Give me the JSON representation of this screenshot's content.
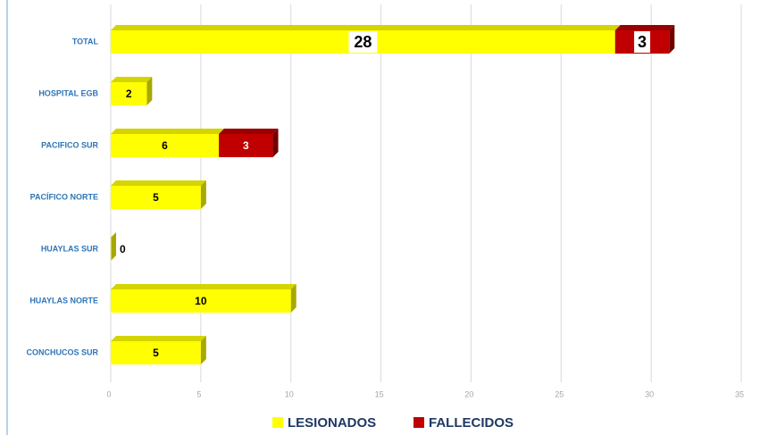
{
  "chart_data": {
    "type": "stacked-barh",
    "categories": [
      "TOTAL",
      "HOSPITAL EGB",
      "PACIFICO SUR",
      "PACÍFICO NORTE",
      "HUAYLAS SUR",
      "HUAYLAS NORTE",
      "CONCHUCOS SUR"
    ],
    "series": [
      {
        "name": "LESIONADOS",
        "color": "#ffff00",
        "values": [
          28,
          2,
          6,
          5,
          0,
          10,
          5
        ]
      },
      {
        "name": "FALLECIDOS",
        "color": "#c00000",
        "values": [
          3,
          null,
          3,
          null,
          null,
          null,
          null
        ]
      }
    ],
    "xlim": [
      0,
      35
    ],
    "xticks": [
      0,
      5,
      10,
      15,
      20,
      25,
      30,
      35
    ],
    "grid": true
  }
}
